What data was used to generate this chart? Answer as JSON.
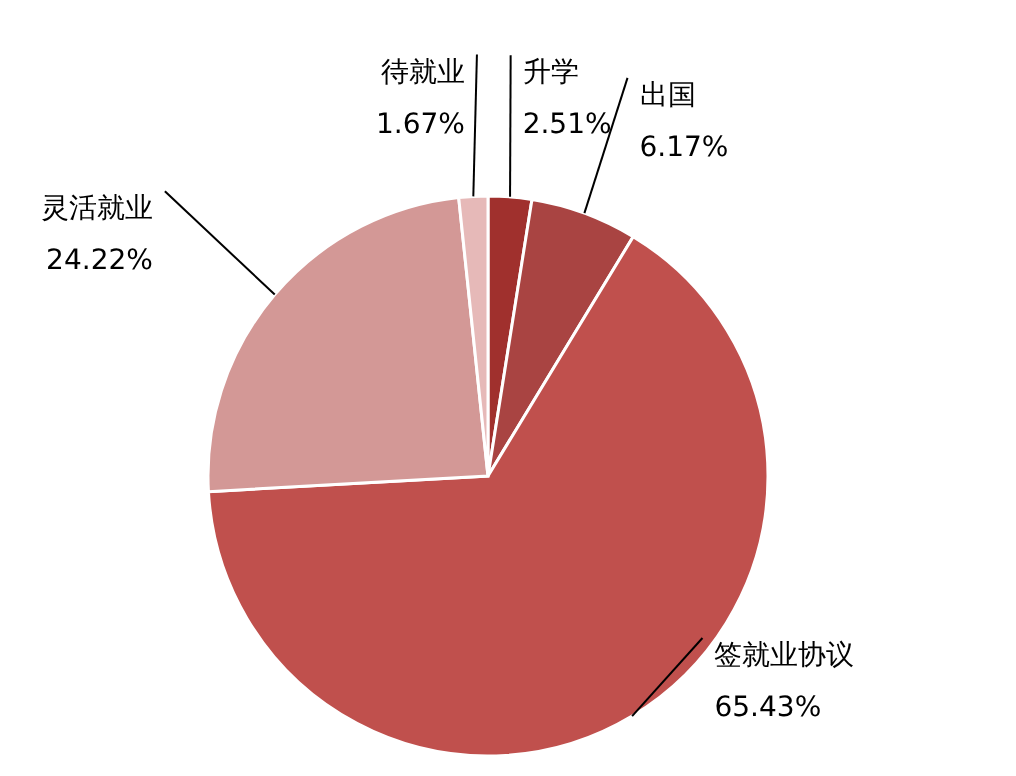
{
  "chart_data": {
    "type": "pie",
    "categories": [
      "升学",
      "出国",
      "签就业协议",
      "灵活就业",
      "待就业"
    ],
    "values": [
      2.51,
      6.17,
      65.43,
      24.22,
      1.67
    ],
    "value_labels": [
      "2.51%",
      "6.17%",
      "65.43%",
      "24.22%",
      "1.67%"
    ],
    "colors": [
      "#a0302d",
      "#a94442",
      "#c0504d",
      "#d39896",
      "#e6b9b8"
    ]
  }
}
